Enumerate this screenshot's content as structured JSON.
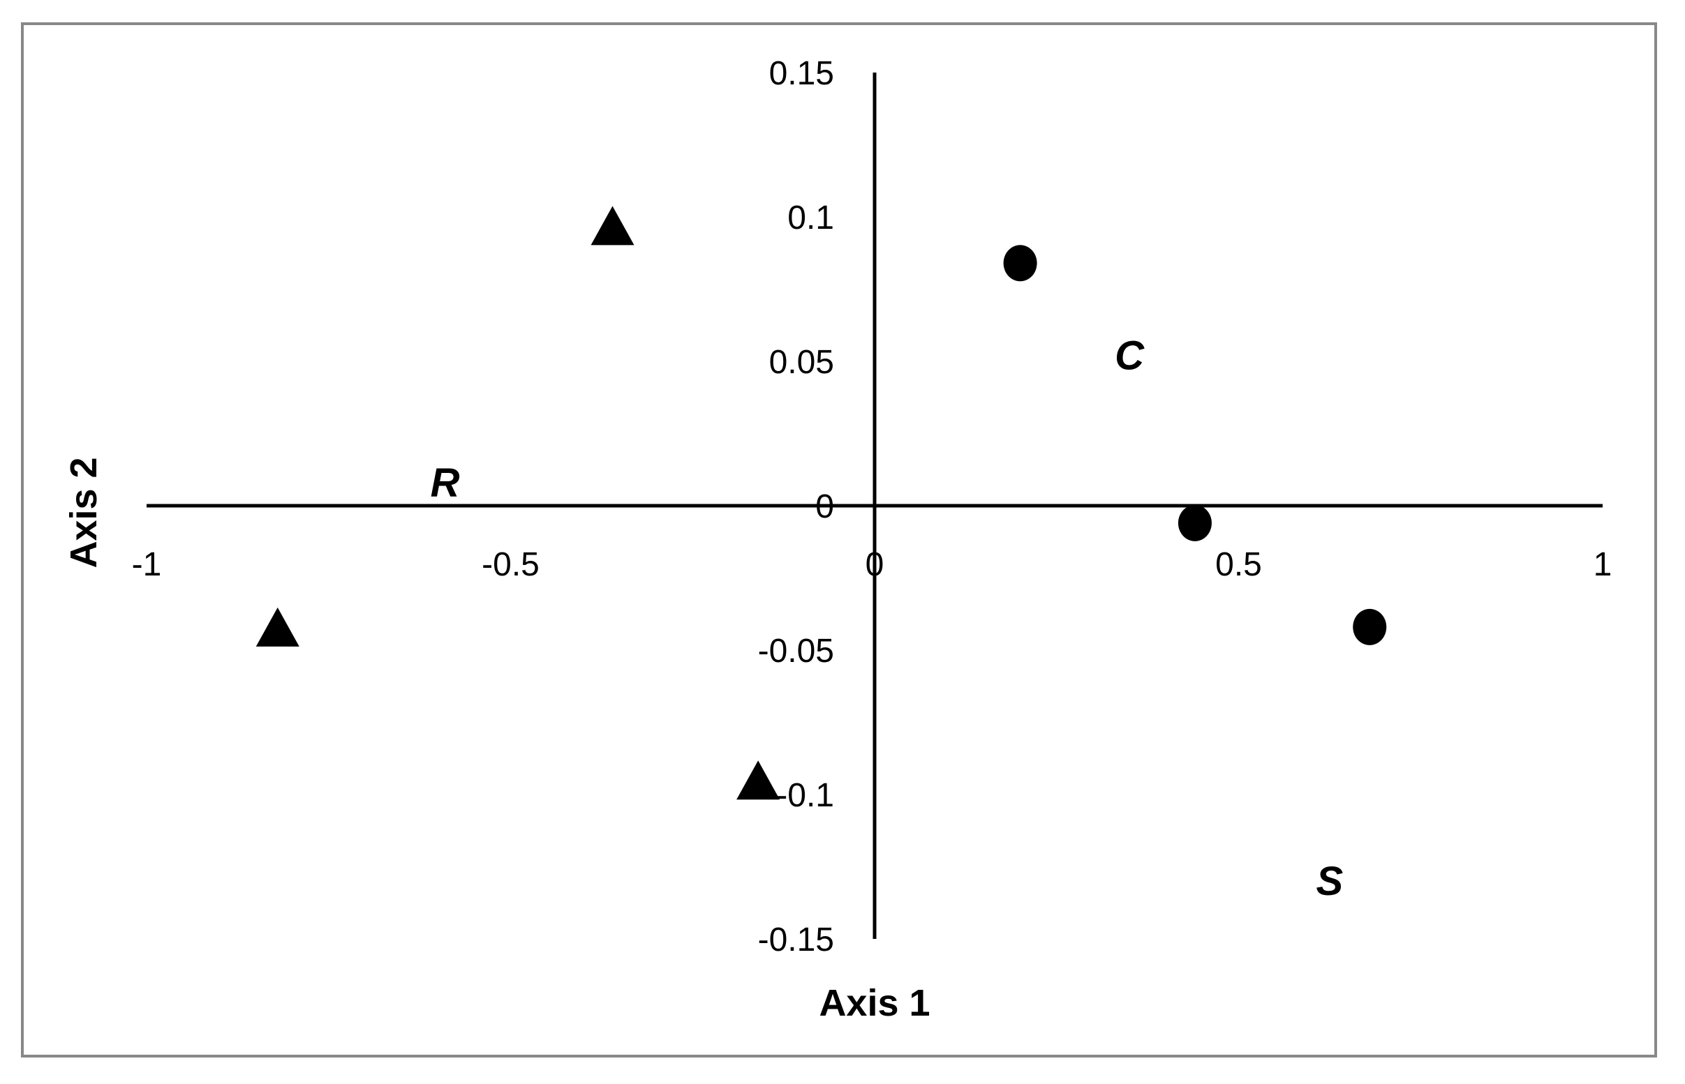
{
  "chart_data": {
    "type": "scatter",
    "title": "",
    "xlabel": "Axis 1",
    "ylabel": "Axis 2",
    "xlim": [
      -1,
      1
    ],
    "ylim": [
      -0.15,
      0.15
    ],
    "x_ticks": [
      "-1",
      "-0.5",
      "0",
      "0.5",
      "1"
    ],
    "x_tick_values": [
      -1,
      -0.5,
      0,
      0.5,
      1
    ],
    "y_ticks": [
      "0.15",
      "0.1",
      "0.05",
      "0",
      "-0.05",
      "-0.1",
      "-0.15"
    ],
    "y_tick_values": [
      0.15,
      0.1,
      0.05,
      0,
      -0.05,
      -0.1,
      -0.15
    ],
    "grid": false,
    "legend": "none",
    "series": [
      {
        "marker": "triangle",
        "color": "#000000",
        "points": [
          {
            "x": -0.36,
            "y": 0.097
          },
          {
            "x": -0.82,
            "y": -0.042
          },
          {
            "x": -0.16,
            "y": -0.095
          }
        ]
      },
      {
        "marker": "circle",
        "color": "#000000",
        "points": [
          {
            "x": 0.2,
            "y": 0.084
          },
          {
            "x": 0.44,
            "y": -0.006
          },
          {
            "x": 0.68,
            "y": -0.042
          }
        ]
      }
    ],
    "annotations": [
      {
        "text": "R",
        "x": -0.59,
        "y": 0.008
      },
      {
        "text": "C",
        "x": 0.35,
        "y": 0.052
      },
      {
        "text": "S",
        "x": 0.625,
        "y": -0.13
      }
    ]
  }
}
